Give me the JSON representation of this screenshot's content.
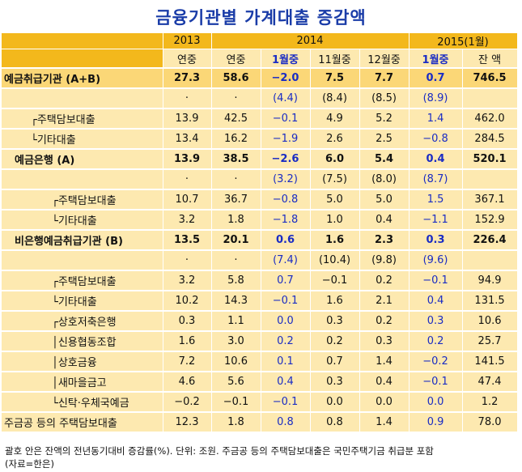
{
  "title": "금융기관별 가계대출 증감액",
  "header": {
    "years": [
      "2013",
      "2014",
      "2015(1월)"
    ],
    "cols": [
      "연중",
      "연중",
      "1월중",
      "11월중",
      "12월중",
      "1월중",
      "잔 액"
    ]
  },
  "rows": [
    {
      "label": "예금취급기관 (A+B)",
      "values": [
        "27.3",
        "58.6",
        "−2.0",
        "7.5",
        "7.7",
        "0.7",
        "746.5"
      ]
    },
    {
      "label": "",
      "values": [
        "·",
        "·",
        "(4.4)",
        "(8.4)",
        "(8.5)",
        "(8.9)",
        ""
      ]
    },
    {
      "label": "┌주택담보대출",
      "values": [
        "13.9",
        "42.5",
        "−0.1",
        "4.9",
        "5.2",
        "1.4",
        "462.0"
      ]
    },
    {
      "label": "└기타대출",
      "values": [
        "13.4",
        "16.2",
        "−1.9",
        "2.6",
        "2.5",
        "−0.8",
        "284.5"
      ]
    },
    {
      "label": "예금은행 (A)",
      "values": [
        "13.9",
        "38.5",
        "−2.6",
        "6.0",
        "5.4",
        "0.4",
        "520.1"
      ]
    },
    {
      "label": "",
      "values": [
        "·",
        "·",
        "(3.2)",
        "(7.5)",
        "(8.0)",
        "(8.7)",
        ""
      ]
    },
    {
      "label": "┌주택담보대출",
      "values": [
        "10.7",
        "36.7",
        "−0.8",
        "5.0",
        "5.0",
        "1.5",
        "367.1"
      ]
    },
    {
      "label": "└기타대출",
      "values": [
        "3.2",
        "1.8",
        "−1.8",
        "1.0",
        "0.4",
        "−1.1",
        "152.9"
      ]
    },
    {
      "label": "비은행예금취급기관 (B)",
      "values": [
        "13.5",
        "20.1",
        "0.6",
        "1.6",
        "2.3",
        "0.3",
        "226.4"
      ]
    },
    {
      "label": "",
      "values": [
        "·",
        "·",
        "(7.4)",
        "(10.4)",
        "(9.8)",
        "(9.6)",
        ""
      ]
    },
    {
      "label": "┌주택담보대출",
      "values": [
        "3.2",
        "5.8",
        "0.7",
        "−0.1",
        "0.2",
        "−0.1",
        "94.9"
      ]
    },
    {
      "label": "└기타대출",
      "values": [
        "10.2",
        "14.3",
        "−0.1",
        "1.6",
        "2.1",
        "0.4",
        "131.5"
      ]
    },
    {
      "label": "┌상호저축은행",
      "values": [
        "0.3",
        "1.1",
        "0.0",
        "0.3",
        "0.2",
        "0.3",
        "10.6"
      ]
    },
    {
      "label": "│신용협동조합",
      "values": [
        "1.6",
        "3.0",
        "0.2",
        "0.2",
        "0.3",
        "0.2",
        "25.7"
      ]
    },
    {
      "label": "│상호금융",
      "values": [
        "7.2",
        "10.6",
        "0.1",
        "0.7",
        "1.4",
        "−0.2",
        "141.5"
      ]
    },
    {
      "label": "│새마을금고",
      "values": [
        "4.6",
        "5.6",
        "0.4",
        "0.3",
        "0.4",
        "−0.1",
        "47.4"
      ]
    },
    {
      "label": "└신탁·우체국예금",
      "values": [
        "−0.2",
        "−0.1",
        "−0.1",
        "0.0",
        "0.0",
        "0.0",
        "1.2"
      ]
    },
    {
      "label": "주금공 등의 주택담보대출",
      "values": [
        "12.3",
        "1.8",
        "0.8",
        "0.8",
        "1.4",
        "0.9",
        "78.0"
      ]
    }
  ],
  "note": "괄호 안은 잔액의 전년동기대비 증감률(%). 단위: 조원. 주금공 등의 주택담보대출은 국민주택기금 취급분 포함",
  "source": "(자료=한은)"
}
